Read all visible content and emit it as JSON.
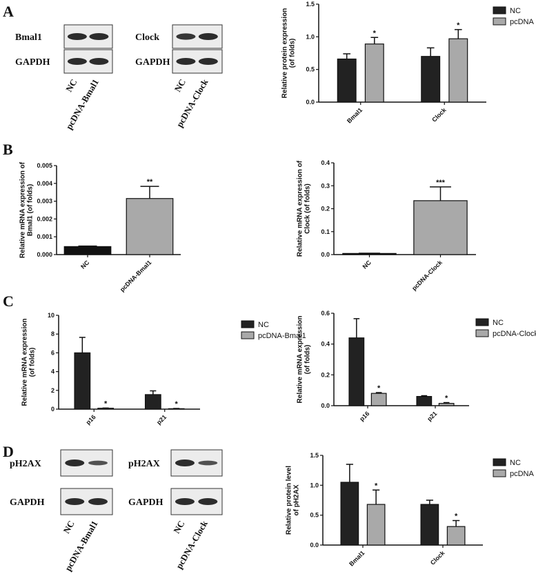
{
  "panel_labels": [
    "A",
    "B",
    "C",
    "D"
  ],
  "blots": [
    {
      "rows": [
        "Bmal1",
        "GAPDH"
      ],
      "lanes": [
        "NC",
        "pcDNA-Bmal1"
      ]
    },
    {
      "rows": [
        "Clock",
        "GAPDH"
      ],
      "lanes": [
        "NC",
        "pcDNA-Clock"
      ]
    },
    {
      "rows": [
        "pH2AX",
        "GAPDH"
      ],
      "lanes": [
        "NC",
        "pcDNA-Bmal1"
      ]
    },
    {
      "rows": [
        "pH2AX",
        "GAPDH"
      ],
      "lanes": [
        "NC",
        "pcDNA-Clock"
      ]
    }
  ],
  "chart_data": [
    {
      "type": "bar",
      "ylabel": [
        "Relative protein expression",
        "(of folds)"
      ],
      "categories": [
        "Bmal1",
        "Clock"
      ],
      "series": [
        {
          "name": "NC",
          "color": "#222222",
          "values": [
            0.66,
            0.7
          ],
          "errors": [
            0.08,
            0.13
          ]
        },
        {
          "name": "pcDNA",
          "color": "#a9a9a9",
          "values": [
            0.89,
            0.97
          ],
          "errors": [
            0.1,
            0.14
          ],
          "significance": [
            "*",
            "*"
          ]
        }
      ],
      "ylim": [
        0,
        1.5
      ],
      "yticks": [
        {
          "value": 0,
          "label": "0.0"
        },
        {
          "value": 0.5,
          "label": "0.5"
        },
        {
          "value": 1,
          "label": "1.0"
        },
        {
          "value": 1.5,
          "label": "1.5"
        }
      ]
    },
    {
      "type": "bar",
      "ylabel": [
        "Relative mRNA expression of",
        "Bmal1 (of folds)"
      ],
      "categories": [
        "NC",
        "pcDNA-Bmal1"
      ],
      "values": [
        0.00045,
        0.00315
      ],
      "errors": [
        3e-05,
        0.00068
      ],
      "colors": [
        "#111111",
        "#a9a9a9"
      ],
      "significance": [
        null,
        "**"
      ],
      "ylim": [
        0,
        0.005
      ],
      "yticks": [
        {
          "value": 0,
          "label": "0.000"
        },
        {
          "value": 0.001,
          "label": "0.001"
        },
        {
          "value": 0.002,
          "label": "0.002"
        },
        {
          "value": 0.003,
          "label": "0.003"
        },
        {
          "value": 0.004,
          "label": "0.004"
        },
        {
          "value": 0.005,
          "label": "0.005"
        }
      ]
    },
    {
      "type": "bar",
      "ylabel": [
        "Relative mRNA expression of",
        "Clock (of folds)"
      ],
      "categories": [
        "NC",
        "pcDNA-Clock"
      ],
      "values": [
        0.005,
        0.235
      ],
      "errors": [
        0.001,
        0.06
      ],
      "colors": [
        "#111111",
        "#a9a9a9"
      ],
      "significance": [
        null,
        "***"
      ],
      "ylim": [
        0,
        0.4
      ],
      "yticks": [
        {
          "value": 0,
          "label": "0.0"
        },
        {
          "value": 0.1,
          "label": "0.1"
        },
        {
          "value": 0.2,
          "label": "0.2"
        },
        {
          "value": 0.3,
          "label": "0.3"
        },
        {
          "value": 0.4,
          "label": "0.4"
        }
      ]
    },
    {
      "type": "bar",
      "ylabel": [
        "Relative mRNA expression",
        "(of folds)"
      ],
      "categories": [
        "p16",
        "p21"
      ],
      "series": [
        {
          "name": "NC",
          "color": "#222222",
          "values": [
            6.0,
            1.55
          ],
          "errors": [
            1.65,
            0.4
          ]
        },
        {
          "name": "pcDNA-Bmal1",
          "color": "#a9a9a9",
          "values": [
            0.1,
            0.05
          ],
          "errors": [
            0.02,
            0.02
          ],
          "significance": [
            "*",
            "*"
          ]
        }
      ],
      "ylim": [
        0,
        10
      ],
      "yticks": [
        0,
        2,
        4,
        6,
        8,
        10
      ]
    },
    {
      "type": "bar",
      "ylabel": [
        "Relative mRNA expression",
        "(of folds)"
      ],
      "categories": [
        "p16",
        "p21"
      ],
      "series": [
        {
          "name": "NC",
          "color": "#222222",
          "values": [
            0.44,
            0.06
          ],
          "errors": [
            0.125,
            0.005
          ]
        },
        {
          "name": "pcDNA-Clock",
          "color": "#a9a9a9",
          "values": [
            0.08,
            0.015
          ],
          "errors": [
            0.005,
            0.005
          ],
          "significance": [
            "*",
            "*"
          ]
        }
      ],
      "ylim": [
        0,
        0.6
      ],
      "yticks": [
        {
          "value": 0,
          "label": "0.0"
        },
        {
          "value": 0.2,
          "label": "0.2"
        },
        {
          "value": 0.4,
          "label": "0.4"
        },
        {
          "value": 0.6,
          "label": "0.6"
        }
      ]
    },
    {
      "type": "bar",
      "ylabel": [
        "Relative protein level",
        "of pH2AX"
      ],
      "categories": [
        "Bmal1",
        "Clock"
      ],
      "series": [
        {
          "name": "NC",
          "color": "#222222",
          "values": [
            1.05,
            0.68
          ],
          "errors": [
            0.3,
            0.07
          ]
        },
        {
          "name": "pcDNA",
          "color": "#a9a9a9",
          "values": [
            0.68,
            0.31
          ],
          "errors": [
            0.24,
            0.1
          ],
          "significance": [
            "*",
            "*"
          ]
        }
      ],
      "ylim": [
        0,
        1.5
      ],
      "yticks": [
        {
          "value": 0,
          "label": "0.0"
        },
        {
          "value": 0.5,
          "label": "0.5"
        },
        {
          "value": 1,
          "label": "1.0"
        },
        {
          "value": 1.5,
          "label": "1.5"
        }
      ]
    }
  ]
}
